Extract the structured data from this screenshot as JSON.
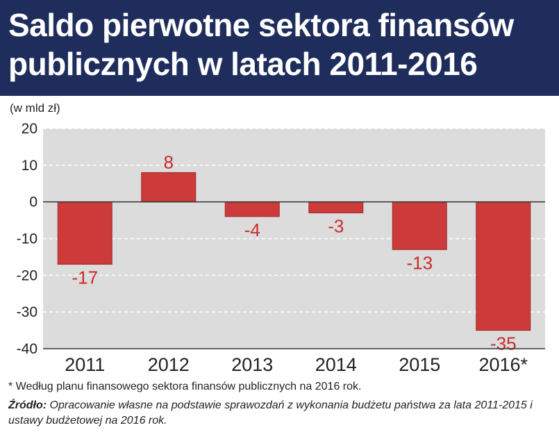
{
  "header": {
    "title": "Saldo pierwotne sektora finansów publicznych w latach 2011-2016"
  },
  "chart_unit": "(w mld zł)",
  "footnote": "* Według planu finansowego sektora finansów publicznych na 2016 rok.",
  "source": {
    "label": "Źródło:",
    "text": "Opracowanie własne na podstawie sprawozdań z wykonania budżetu państwa za lata 2011-2015 i ustawy budżetowej na 2016 rok."
  },
  "colors": {
    "header_bg": "#1e2d5c",
    "bar": "#cc3a3a",
    "bar_stroke": "#9e2a2a",
    "plot_bg": "#dcdcdc",
    "label": "#cc2a2a"
  },
  "chart_data": {
    "type": "bar",
    "title": "Saldo pierwotne sektora finansów publicznych w latach 2011-2016",
    "ylabel": "(w mld zł)",
    "categories": [
      "2011",
      "2012",
      "2013",
      "2014",
      "2015",
      "2016*"
    ],
    "values": [
      -17,
      8,
      -4,
      -3,
      -13,
      -35
    ],
    "data_labels": [
      "-17",
      "8",
      "-4",
      "-3",
      "-13",
      "-35"
    ],
    "ylim": [
      -40,
      20
    ],
    "yticks": [
      20,
      10,
      0,
      -10,
      -20,
      -30,
      -40
    ],
    "ytick_labels": [
      "20",
      "10",
      "0",
      "-10",
      "-20",
      "-30",
      "-40"
    ],
    "grid": true
  }
}
